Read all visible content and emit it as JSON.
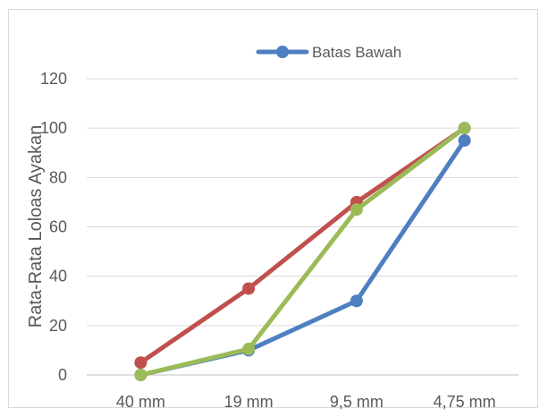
{
  "chart_data": {
    "type": "line",
    "categories": [
      "40 mm",
      "19 mm",
      "9,5 mm",
      "4,75 mm"
    ],
    "series": [
      {
        "name": "Batas Bawah",
        "color": "#4e7fc0",
        "values": [
          0,
          10,
          30,
          95
        ]
      },
      {
        "color": "#c0504d",
        "values": [
          5,
          35,
          70,
          100
        ]
      },
      {
        "color": "#9bbb59",
        "values": [
          0,
          10.5,
          67,
          100
        ]
      }
    ],
    "ylabel": "Rata-Rata Loloas Ayakan",
    "xlabel": "",
    "ylim": [
      0,
      120
    ],
    "yticks": [
      0,
      20,
      40,
      60,
      80,
      100,
      120
    ],
    "grid": true,
    "legend": "top-right"
  }
}
